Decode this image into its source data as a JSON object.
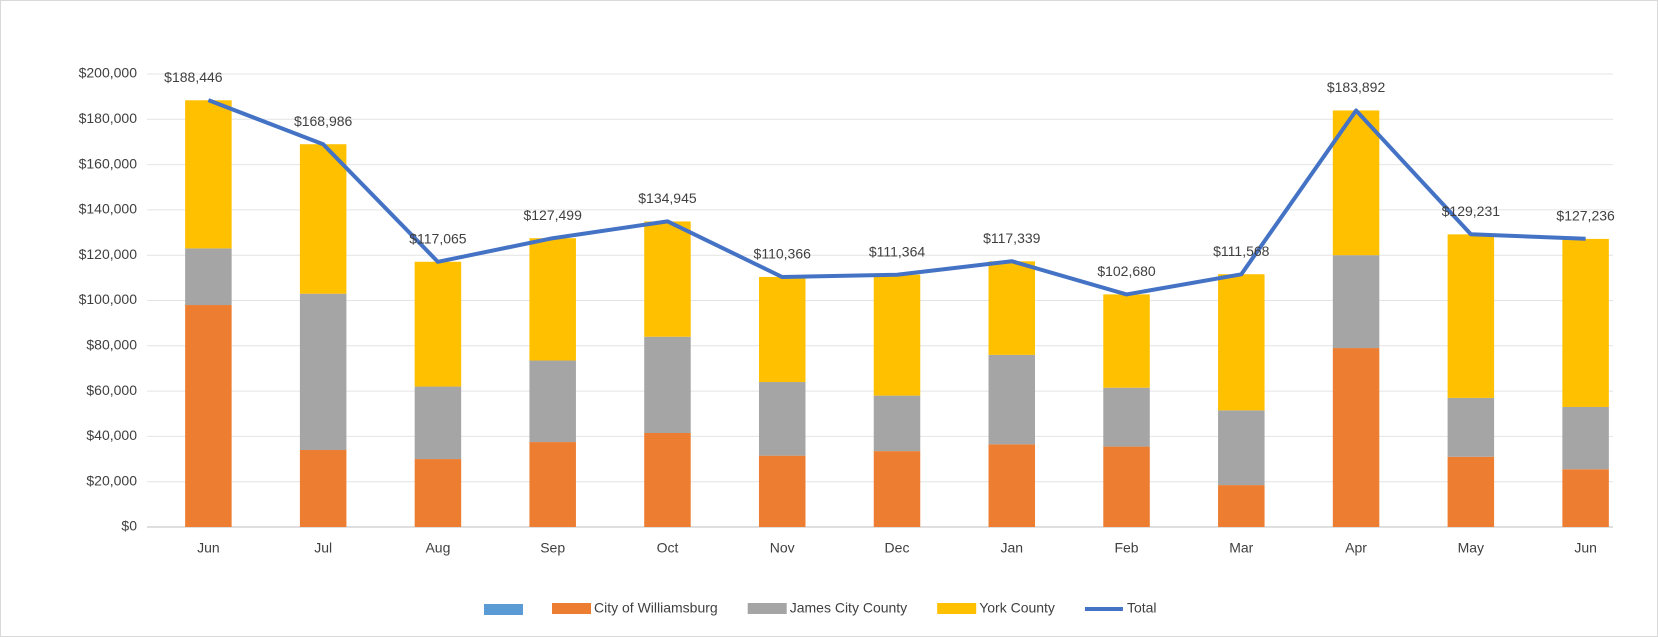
{
  "chart_data": {
    "type": "stacked-bar-line",
    "categories": [
      "Jun",
      "Jul",
      "Aug",
      "Sep",
      "Oct",
      "Nov",
      "Dec",
      "Jan",
      "Feb",
      "Mar",
      "Apr",
      "May",
      "Jun"
    ],
    "series": [
      {
        "name": "City of Williamsburg",
        "color": "#ed7d31",
        "values": [
          98000,
          34000,
          30000,
          37500,
          41500,
          31500,
          33500,
          36500,
          35500,
          18500,
          79000,
          31000,
          25500
        ]
      },
      {
        "name": "James City County",
        "color": "#a5a5a5",
        "values": [
          25000,
          69000,
          32000,
          36000,
          42500,
          32500,
          24500,
          39500,
          26000,
          33000,
          41000,
          26000,
          27500
        ]
      },
      {
        "name": "York County",
        "color": "#ffc000",
        "values": [
          65400,
          66000,
          55100,
          54000,
          50900,
          46400,
          53400,
          41300,
          41200,
          60100,
          63900,
          72200,
          74200
        ]
      },
      {
        "name": "Total",
        "color": "#4472c4",
        "type": "line",
        "values": [
          188446,
          168986,
          117065,
          127499,
          134945,
          110366,
          111364,
          117339,
          102680,
          111568,
          183892,
          129231,
          127236
        ],
        "value_labels": [
          "$188,446",
          "$168,986",
          "$117,065",
          "$127,499",
          "$134,945",
          "$110,366",
          "$111,364",
          "$117,339",
          "$102,680",
          "$111,568",
          "$183,892",
          "$129,231",
          "$127,236"
        ]
      }
    ],
    "ylim": [
      0,
      200000
    ],
    "yticks": [
      {
        "value": 0,
        "label": "$0"
      },
      {
        "value": 20000,
        "label": "$20,000"
      },
      {
        "value": 40000,
        "label": "$40,000"
      },
      {
        "value": 60000,
        "label": "$60,000"
      },
      {
        "value": 80000,
        "label": "$80,000"
      },
      {
        "value": 100000,
        "label": "$100,000"
      },
      {
        "value": 120000,
        "label": "$120,000"
      },
      {
        "value": 140000,
        "label": "$140,000"
      },
      {
        "value": 160000,
        "label": "$160,000"
      },
      {
        "value": 180000,
        "label": "$180,000"
      },
      {
        "value": 200000,
        "label": "$200,000"
      }
    ],
    "grid": true,
    "legend": "bottom"
  }
}
